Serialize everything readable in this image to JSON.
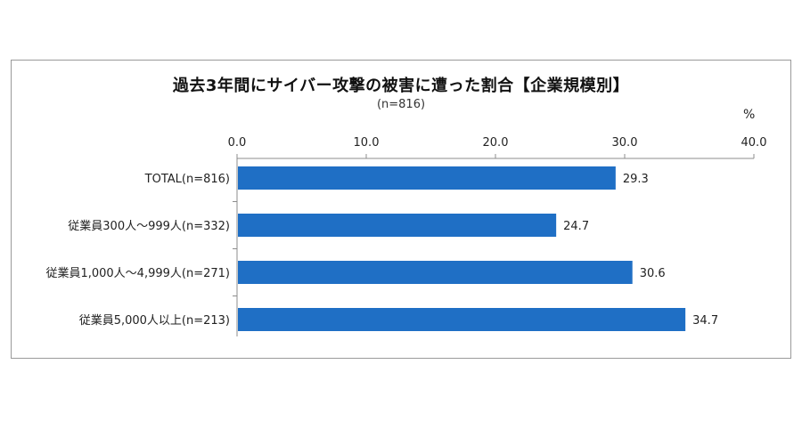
{
  "chart_data": {
    "type": "bar",
    "orientation": "horizontal",
    "title": "過去3年間にサイバー攻撃の被害に遭った割合【企業規模別】",
    "subtitle": "(n=816)",
    "unit": "%",
    "xlim": [
      0,
      40
    ],
    "ticks": [
      "0.0",
      "10.0",
      "20.0",
      "30.0",
      "40.0"
    ],
    "tick_values": [
      0,
      10,
      20,
      30,
      40
    ],
    "categories": [
      "TOTAL(n=816)",
      "従業員300人～999人(n=332)",
      "従業員1,000人～4,999人(n=271)",
      "従業員5,000人以上(n=213)"
    ],
    "values": [
      29.3,
      24.7,
      30.6,
      34.7
    ],
    "value_labels": [
      "29.3",
      "24.7",
      "30.6",
      "34.7"
    ],
    "bar_color": "#1f6fc5",
    "grid": false,
    "legend": "none"
  }
}
